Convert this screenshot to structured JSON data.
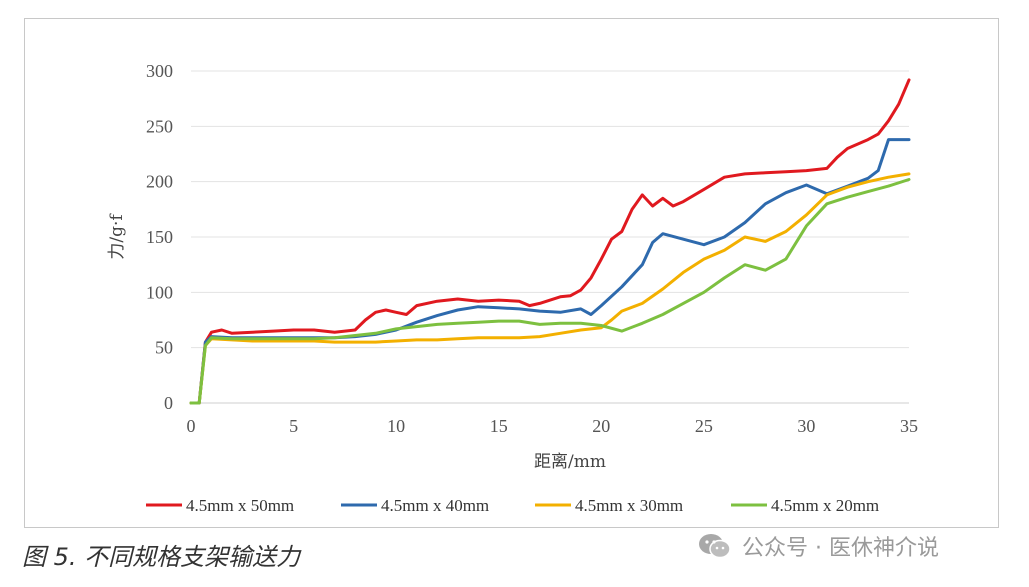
{
  "chart_data": {
    "type": "line",
    "xlabel": "距离/mm",
    "ylabel": "力/g·f",
    "xlim": [
      0,
      35
    ],
    "ylim": [
      0,
      300
    ],
    "xticks": [
      0,
      5,
      10,
      15,
      20,
      25,
      30,
      35
    ],
    "yticks": [
      0,
      50,
      100,
      150,
      200,
      250,
      300
    ],
    "grid": "horizontal",
    "legend_position": "bottom",
    "series": [
      {
        "name": "4.5mm x 50mm",
        "color": "#e0191f",
        "points": [
          [
            0,
            0
          ],
          [
            0.4,
            0
          ],
          [
            0.7,
            55
          ],
          [
            1,
            64
          ],
          [
            1.5,
            66
          ],
          [
            2,
            63
          ],
          [
            3,
            64
          ],
          [
            4,
            65
          ],
          [
            5,
            66
          ],
          [
            6,
            66
          ],
          [
            7,
            64
          ],
          [
            8,
            66
          ],
          [
            8.5,
            75
          ],
          [
            9,
            82
          ],
          [
            9.5,
            84
          ],
          [
            10,
            82
          ],
          [
            10.5,
            80
          ],
          [
            11,
            88
          ],
          [
            12,
            92
          ],
          [
            13,
            94
          ],
          [
            14,
            92
          ],
          [
            15,
            93
          ],
          [
            16,
            92
          ],
          [
            16.5,
            88
          ],
          [
            17,
            90
          ],
          [
            18,
            96
          ],
          [
            18.5,
            97
          ],
          [
            19,
            102
          ],
          [
            19.5,
            113
          ],
          [
            20,
            130
          ],
          [
            20.5,
            148
          ],
          [
            21,
            155
          ],
          [
            21.5,
            175
          ],
          [
            22,
            188
          ],
          [
            22.5,
            178
          ],
          [
            23,
            185
          ],
          [
            23.5,
            178
          ],
          [
            24,
            182
          ],
          [
            25,
            193
          ],
          [
            26,
            204
          ],
          [
            27,
            207
          ],
          [
            28,
            208
          ],
          [
            29,
            209
          ],
          [
            30,
            210
          ],
          [
            31,
            212
          ],
          [
            31.5,
            222
          ],
          [
            32,
            230
          ],
          [
            33,
            238
          ],
          [
            33.5,
            243
          ],
          [
            34,
            255
          ],
          [
            34.5,
            270
          ],
          [
            35,
            292
          ]
        ]
      },
      {
        "name": "4.5mm x 40mm",
        "color": "#2e6aad",
        "points": [
          [
            0,
            0
          ],
          [
            0.4,
            0
          ],
          [
            0.7,
            55
          ],
          [
            1,
            60
          ],
          [
            2,
            59
          ],
          [
            3,
            59
          ],
          [
            4,
            59
          ],
          [
            5,
            59
          ],
          [
            6,
            59
          ],
          [
            7,
            59
          ],
          [
            8,
            60
          ],
          [
            9,
            62
          ],
          [
            10,
            66
          ],
          [
            11,
            73
          ],
          [
            12,
            79
          ],
          [
            13,
            84
          ],
          [
            14,
            87
          ],
          [
            15,
            86
          ],
          [
            16,
            85
          ],
          [
            17,
            83
          ],
          [
            18,
            82
          ],
          [
            19,
            85
          ],
          [
            19.5,
            80
          ],
          [
            20,
            88
          ],
          [
            21,
            105
          ],
          [
            22,
            125
          ],
          [
            22.5,
            145
          ],
          [
            23,
            153
          ],
          [
            24,
            148
          ],
          [
            25,
            143
          ],
          [
            26,
            150
          ],
          [
            27,
            163
          ],
          [
            28,
            180
          ],
          [
            29,
            190
          ],
          [
            30,
            197
          ],
          [
            31,
            189
          ],
          [
            32,
            196
          ],
          [
            33,
            203
          ],
          [
            33.5,
            210
          ],
          [
            34,
            238
          ],
          [
            35,
            238
          ]
        ]
      },
      {
        "name": "4.5mm x 30mm",
        "color": "#f3b000",
        "points": [
          [
            0,
            0
          ],
          [
            0.4,
            0
          ],
          [
            0.7,
            52
          ],
          [
            1,
            58
          ],
          [
            2,
            57
          ],
          [
            3,
            56
          ],
          [
            4,
            56
          ],
          [
            5,
            56
          ],
          [
            6,
            56
          ],
          [
            7,
            55
          ],
          [
            8,
            55
          ],
          [
            9,
            55
          ],
          [
            10,
            56
          ],
          [
            11,
            57
          ],
          [
            12,
            57
          ],
          [
            13,
            58
          ],
          [
            14,
            59
          ],
          [
            15,
            59
          ],
          [
            16,
            59
          ],
          [
            17,
            60
          ],
          [
            18,
            63
          ],
          [
            19,
            66
          ],
          [
            20,
            68
          ],
          [
            20.5,
            75
          ],
          [
            21,
            83
          ],
          [
            22,
            90
          ],
          [
            23,
            103
          ],
          [
            24,
            118
          ],
          [
            25,
            130
          ],
          [
            26,
            138
          ],
          [
            27,
            150
          ],
          [
            28,
            146
          ],
          [
            29,
            155
          ],
          [
            30,
            170
          ],
          [
            31,
            188
          ],
          [
            32,
            195
          ],
          [
            33,
            200
          ],
          [
            34,
            204
          ],
          [
            35,
            207
          ]
        ]
      },
      {
        "name": "4.5mm x 20mm",
        "color": "#7dc040",
        "points": [
          [
            0,
            0
          ],
          [
            0.4,
            0
          ],
          [
            0.7,
            52
          ],
          [
            1,
            59
          ],
          [
            2,
            58
          ],
          [
            3,
            58
          ],
          [
            4,
            58
          ],
          [
            5,
            58
          ],
          [
            6,
            58
          ],
          [
            7,
            59
          ],
          [
            8,
            61
          ],
          [
            9,
            63
          ],
          [
            10,
            67
          ],
          [
            11,
            69
          ],
          [
            12,
            71
          ],
          [
            13,
            72
          ],
          [
            14,
            73
          ],
          [
            15,
            74
          ],
          [
            16,
            74
          ],
          [
            17,
            71
          ],
          [
            18,
            72
          ],
          [
            19,
            72
          ],
          [
            20,
            70
          ],
          [
            21,
            65
          ],
          [
            22,
            72
          ],
          [
            23,
            80
          ],
          [
            24,
            90
          ],
          [
            25,
            100
          ],
          [
            26,
            113
          ],
          [
            27,
            125
          ],
          [
            28,
            120
          ],
          [
            29,
            130
          ],
          [
            30,
            160
          ],
          [
            31,
            180
          ],
          [
            32,
            186
          ],
          [
            33,
            191
          ],
          [
            34,
            196
          ],
          [
            35,
            202
          ]
        ]
      }
    ]
  },
  "caption": "图 5. 不同规格支架输送力",
  "watermark": "公众号 · 医休神介说"
}
